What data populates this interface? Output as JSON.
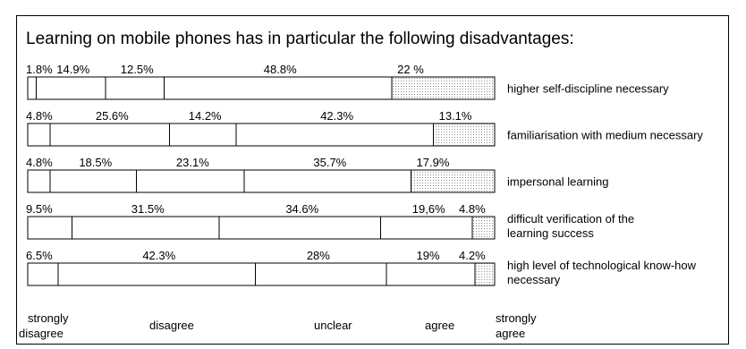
{
  "chart_data": {
    "type": "bar",
    "stacked": true,
    "orientation": "horizontal",
    "title": "Learning on mobile phones has in particular the following disadvantages:",
    "categories": [
      [
        "higher self-discipline necessary"
      ],
      [
        "familiarisation with medium necessary"
      ],
      [
        "impersonal learning"
      ],
      [
        "difficult verification of the",
        "learning success"
      ],
      [
        "high level of technological know-how",
        "necessary"
      ]
    ],
    "series": [
      {
        "name": "strongly disagree",
        "label_lines": [
          "strongly",
          "disagree"
        ],
        "pattern": "none",
        "values": [
          1.8,
          4.8,
          4.8,
          9.5,
          6.5
        ],
        "value_labels": [
          "1.8%",
          "4.8%",
          "4.8%",
          "9.5%",
          "6.5%"
        ]
      },
      {
        "name": "disagree",
        "label_lines": [
          "disagree"
        ],
        "pattern": "none",
        "values": [
          14.9,
          25.6,
          18.5,
          31.5,
          42.3
        ],
        "value_labels": [
          "14.9%",
          "25.6%",
          "18.5%",
          "31.5%",
          "42.3%"
        ]
      },
      {
        "name": "unclear",
        "label_lines": [
          "unclear"
        ],
        "pattern": "none",
        "values": [
          12.5,
          14.2,
          23.1,
          34.6,
          28
        ],
        "value_labels": [
          "12.5%",
          "14.2%",
          "23.1%",
          "34.6%",
          "28%"
        ]
      },
      {
        "name": "agree",
        "label_lines": [
          "agree"
        ],
        "pattern": "none",
        "values": [
          48.8,
          42.3,
          35.7,
          19.6,
          19
        ],
        "value_labels": [
          "48.8%",
          "42.3%",
          "35.7%",
          "19,6%",
          "19%"
        ]
      },
      {
        "name": "strongly agree",
        "label_lines": [
          "strongly",
          "agree"
        ],
        "pattern": "dotted",
        "values": [
          22,
          13.1,
          17.9,
          4.8,
          4.2
        ],
        "value_labels": [
          "22 %",
          "13.1%",
          "17.9%",
          "4.8%",
          "4.2%"
        ]
      }
    ],
    "xlim": [
      0,
      100
    ],
    "grid": false,
    "legend": "bottom"
  },
  "colors": {
    "border": "#000000",
    "fill": "#ffffff",
    "dots": "#8a8a8a"
  }
}
